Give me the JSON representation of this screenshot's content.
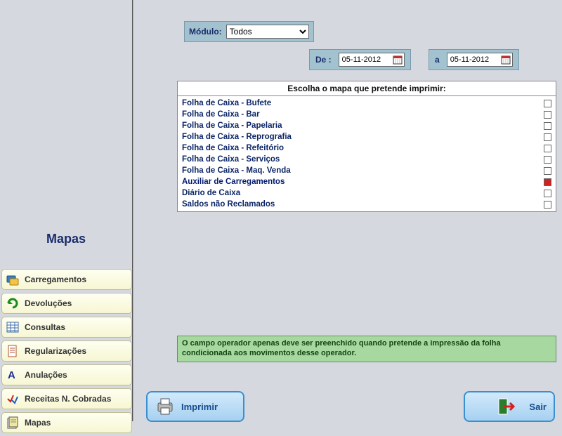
{
  "colors": {
    "page_bg": "#d6d8e0",
    "sidebar_btn_bg_top": "#fefff0",
    "sidebar_btn_bg_bottom": "#f7f6d4",
    "sidebar_btn_border": "#bfbf94",
    "accent_blue_panel": "#a3c2cf",
    "accent_blue_panel_border": "#7a9aac",
    "dark_blue_text": "#1a2d6b",
    "map_item_text": "#0a2566",
    "help_bg": "#a7d8a0",
    "help_border": "#58965a",
    "help_text": "#114411",
    "primary_btn_top": "#d2e9fb",
    "primary_btn_bottom": "#a6d1f0",
    "primary_btn_border": "#3a8fd0",
    "primary_btn_text": "#134b8b",
    "checked_cb": "#d02020"
  },
  "sidebar": {
    "title": "Mapas",
    "buttons": [
      {
        "icon": "transfer-card-icon",
        "label": "Carregamentos"
      },
      {
        "icon": "return-arrow-icon",
        "label": "Devoluções"
      },
      {
        "icon": "table-icon",
        "label": "Consultas"
      },
      {
        "icon": "document-icon",
        "label": "Regularizações"
      },
      {
        "icon": "letter-a-icon",
        "label": "Anulações"
      },
      {
        "icon": "checkmark-icon",
        "label": "Receitas N. Cobradas"
      },
      {
        "icon": "maps-icon",
        "label": "Mapas"
      }
    ]
  },
  "module": {
    "label": "Módulo:",
    "selected": "Todos",
    "options": [
      "Todos"
    ]
  },
  "dates": {
    "from_label": "De :",
    "from_value": "05-11-2012",
    "to_label": "a",
    "to_value": "05-11-2012"
  },
  "maps_panel": {
    "header": "Escolha o mapa que pretende imprimir:",
    "items": [
      {
        "label": "Folha de Caixa - Bufete",
        "checked": false,
        "selected": false
      },
      {
        "label": "Folha de Caixa - Bar",
        "checked": false,
        "selected": false
      },
      {
        "label": "Folha de Caixa - Papelaria",
        "checked": false,
        "selected": false
      },
      {
        "label": "Folha de Caixa - Reprografia",
        "checked": false,
        "selected": false
      },
      {
        "label": "Folha de Caixa - Refeitório",
        "checked": false,
        "selected": false
      },
      {
        "label": "Folha de Caixa - Serviços",
        "checked": false,
        "selected": false
      },
      {
        "label": "Folha de Caixa - Maq. Venda",
        "checked": false,
        "selected": false
      },
      {
        "label": "Auxiliar de Carregamentos",
        "checked": true,
        "selected": true
      },
      {
        "label": "Diário de Caixa",
        "checked": false,
        "selected": false
      },
      {
        "label": "Saldos não Reclamados",
        "checked": false,
        "selected": false
      }
    ]
  },
  "help_text": "O campo operador apenas deve ser preenchido quando pretende a impressão da folha condicionada aos movimentos desse operador.",
  "actions": {
    "print_label": "Imprimir",
    "exit_label": "Sair"
  }
}
